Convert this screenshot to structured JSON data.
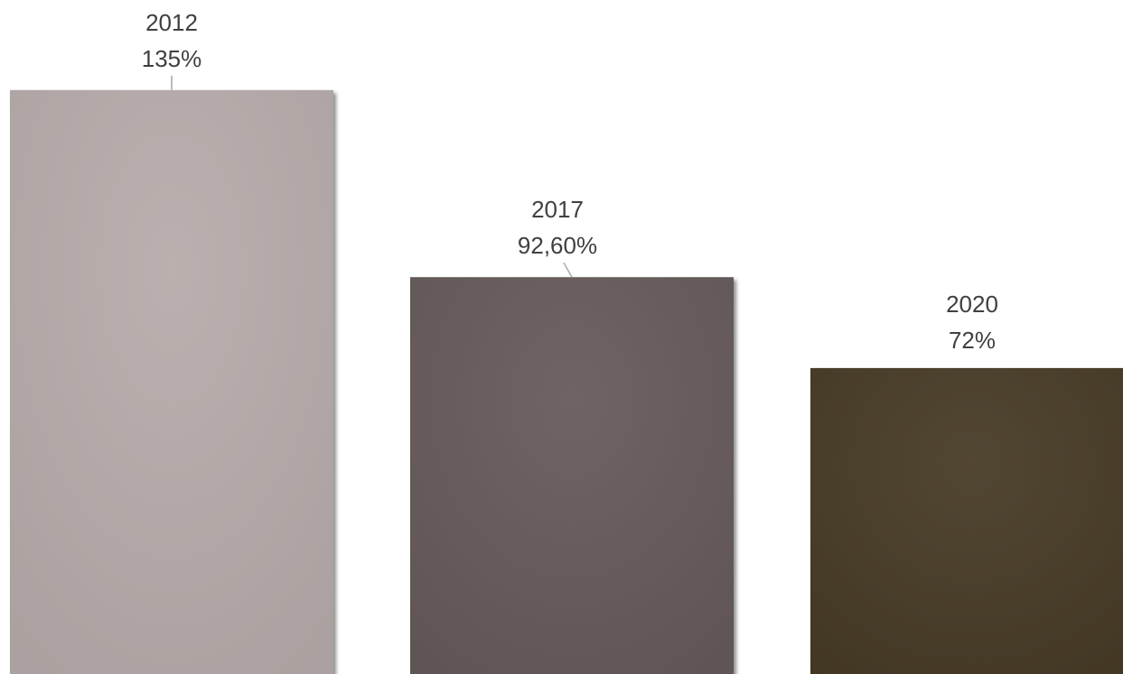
{
  "chart_data": {
    "type": "bar",
    "categories": [
      "2012",
      "2017",
      "2020"
    ],
    "values": [
      135,
      92.6,
      72
    ],
    "value_labels": [
      "135%",
      "92,60%",
      "72%"
    ],
    "colors": [
      "#b5abaa",
      "#665a5a",
      "#463a26"
    ],
    "ylim": [
      0,
      135
    ],
    "grid": false,
    "legend": "none",
    "axes_visible": false
  }
}
